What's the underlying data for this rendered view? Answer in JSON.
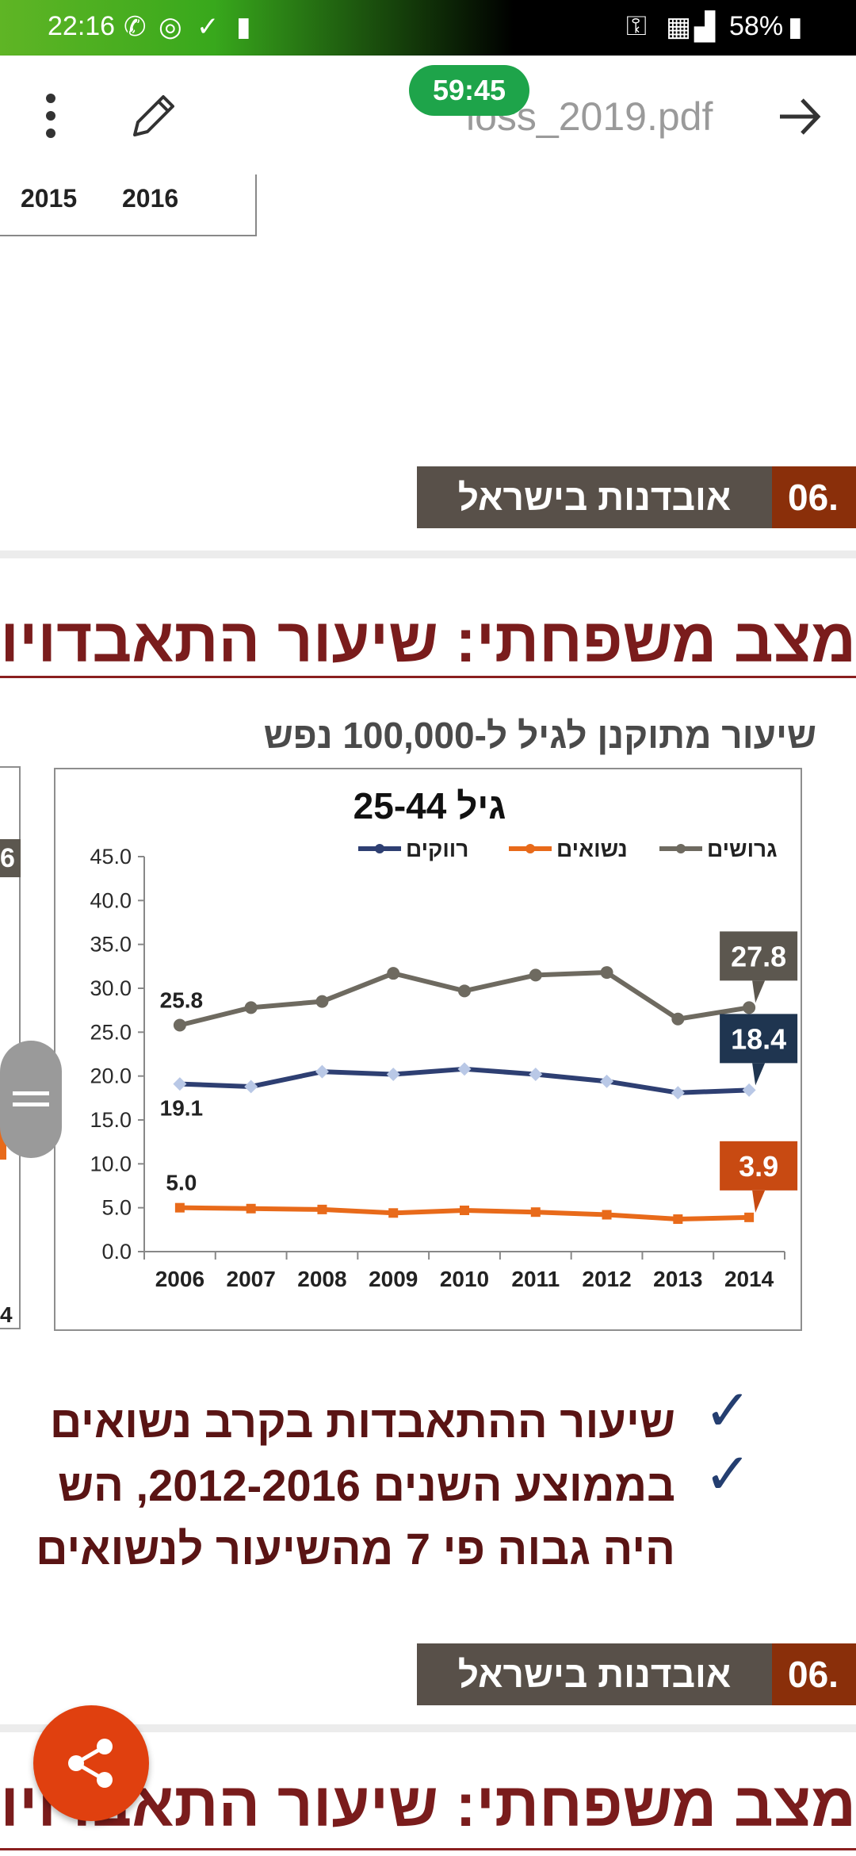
{
  "status_bar": {
    "time": "22:16",
    "battery": "58%"
  },
  "toolbar": {
    "file_name": "loss_2019.pdf",
    "timer": "59:45"
  },
  "pages": {
    "prev_chart_years": [
      "2015",
      "2016"
    ],
    "footer_title": "אובדנות בישראל",
    "footer_number": "06.",
    "slide_title": "מצב משפחתי: שיעור התאבדויות",
    "subtitle": "שיעור מתוקנן לגיל ל-100,000 נפש",
    "left_partial_labels": [
      "6",
      "4"
    ],
    "bullets": [
      "שיעור ההתאבדות בקרב נשואים",
      "בממוצע השנים 2012-2016, הש",
      "היה גבוה פי 7 מהשיעור לנשואים"
    ]
  },
  "chart_data": {
    "type": "line",
    "title": "גיל 25-44",
    "x": [
      "2006",
      "2007",
      "2008",
      "2009",
      "2010",
      "2011",
      "2012",
      "2013",
      "2014"
    ],
    "y_ticks": [
      "0.0",
      "5.0",
      "10.0",
      "15.0",
      "20.0",
      "25.0",
      "30.0",
      "35.0",
      "40.0",
      "45.0"
    ],
    "ylim": [
      0,
      45
    ],
    "series": [
      {
        "name": "גרושים",
        "color": "#6e6a60",
        "values": [
          25.8,
          27.8,
          28.5,
          31.7,
          29.7,
          31.5,
          31.8,
          26.5,
          27.8
        ],
        "first_label": "25.8",
        "last_label": "27.8",
        "callout_bg": "#5c574f"
      },
      {
        "name": "נשואים",
        "color": "#e86a1a",
        "values": [
          5.0,
          4.9,
          4.8,
          4.4,
          4.7,
          4.5,
          4.2,
          3.7,
          3.9
        ],
        "first_label": "5.0",
        "last_label": "3.9",
        "callout_bg": "#c84a12"
      },
      {
        "name": "רווקים",
        "color": "#2e3f72",
        "values": [
          19.1,
          18.8,
          20.5,
          20.2,
          20.8,
          20.2,
          19.4,
          18.1,
          18.4
        ],
        "first_label": "19.1",
        "last_label": "18.4",
        "callout_bg": "#1f3550"
      }
    ]
  }
}
